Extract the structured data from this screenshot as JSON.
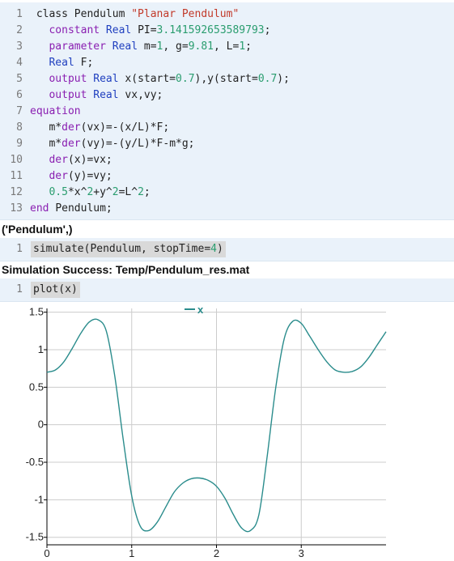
{
  "cell1": {
    "lines": [
      {
        "n": "1",
        "segs": [
          {
            "t": " class Pendulum ",
            "c": ""
          },
          {
            "t": "\"Planar Pendulum\"",
            "c": "str"
          }
        ]
      },
      {
        "n": "2",
        "segs": [
          {
            "t": "   constant ",
            "c": "kw"
          },
          {
            "t": "Real ",
            "c": "typ"
          },
          {
            "t": "PI=",
            "c": ""
          },
          {
            "t": "3.141592653589793",
            "c": "num"
          },
          {
            "t": ";",
            "c": ""
          }
        ]
      },
      {
        "n": "3",
        "segs": [
          {
            "t": "   parameter ",
            "c": "kw"
          },
          {
            "t": "Real ",
            "c": "typ"
          },
          {
            "t": "m=",
            "c": ""
          },
          {
            "t": "1",
            "c": "num"
          },
          {
            "t": ", g=",
            "c": ""
          },
          {
            "t": "9.81",
            "c": "num"
          },
          {
            "t": ", L=",
            "c": ""
          },
          {
            "t": "1",
            "c": "num"
          },
          {
            "t": ";",
            "c": ""
          }
        ]
      },
      {
        "n": "4",
        "segs": [
          {
            "t": "   Real ",
            "c": "typ"
          },
          {
            "t": "F;",
            "c": ""
          }
        ]
      },
      {
        "n": "5",
        "segs": [
          {
            "t": "   output ",
            "c": "kw"
          },
          {
            "t": "Real ",
            "c": "typ"
          },
          {
            "t": "x(start=",
            "c": ""
          },
          {
            "t": "0.7",
            "c": "num"
          },
          {
            "t": "),y(start=",
            "c": ""
          },
          {
            "t": "0.7",
            "c": "num"
          },
          {
            "t": ");",
            "c": ""
          }
        ]
      },
      {
        "n": "6",
        "segs": [
          {
            "t": "   output ",
            "c": "kw"
          },
          {
            "t": "Real ",
            "c": "typ"
          },
          {
            "t": "vx,vy;",
            "c": ""
          }
        ]
      },
      {
        "n": "7",
        "segs": [
          {
            "t": "equation",
            "c": "kw"
          }
        ]
      },
      {
        "n": "8",
        "segs": [
          {
            "t": "   m*",
            "c": ""
          },
          {
            "t": "der",
            "c": "kw"
          },
          {
            "t": "(vx)=-(x/L)*F;",
            "c": ""
          }
        ]
      },
      {
        "n": "9",
        "segs": [
          {
            "t": "   m*",
            "c": ""
          },
          {
            "t": "der",
            "c": "kw"
          },
          {
            "t": "(vy)=-(y/L)*F-m*g;",
            "c": ""
          }
        ]
      },
      {
        "n": "10",
        "segs": [
          {
            "t": "   ",
            "c": ""
          },
          {
            "t": "der",
            "c": "kw"
          },
          {
            "t": "(x)=vx;",
            "c": ""
          }
        ]
      },
      {
        "n": "11",
        "segs": [
          {
            "t": "   ",
            "c": ""
          },
          {
            "t": "der",
            "c": "kw"
          },
          {
            "t": "(y)=vy;",
            "c": ""
          }
        ]
      },
      {
        "n": "12",
        "segs": [
          {
            "t": "   ",
            "c": ""
          },
          {
            "t": "0.5",
            "c": "num"
          },
          {
            "t": "*x^",
            "c": ""
          },
          {
            "t": "2",
            "c": "num"
          },
          {
            "t": "+y^",
            "c": ""
          },
          {
            "t": "2",
            "c": "num"
          },
          {
            "t": "=L^",
            "c": ""
          },
          {
            "t": "2",
            "c": "num"
          },
          {
            "t": ";",
            "c": ""
          }
        ]
      },
      {
        "n": "13",
        "segs": [
          {
            "t": "end ",
            "c": "kw"
          },
          {
            "t": "Pendulum;",
            "c": ""
          }
        ]
      }
    ]
  },
  "output1": "('Pendulum',)",
  "cell2": {
    "n": "1",
    "segs": [
      {
        "t": "simulate(Pendulum, stopTime=",
        "c": ""
      },
      {
        "t": "4",
        "c": "num"
      },
      {
        "t": ")",
        "c": ""
      }
    ]
  },
  "output2": "Simulation Success: Temp/Pendulum_res.mat",
  "cell3": {
    "n": "1",
    "segs": [
      {
        "t": "plot(x)",
        "c": ""
      }
    ]
  },
  "colors": {
    "series": "#2a8c8c",
    "grid": "#cccccc",
    "axis": "#000000"
  },
  "chart_data": {
    "type": "line",
    "title": "",
    "xlabel": "",
    "ylabel": "",
    "xlim": [
      0,
      4
    ],
    "ylim": [
      -1.6,
      1.55
    ],
    "xticks": [
      0,
      1,
      2,
      3
    ],
    "yticks": [
      1.5,
      1,
      0.5,
      0,
      -0.5,
      -1,
      -1.5
    ],
    "ytick_labels": [
      "1.5",
      "1",
      "0.5",
      "0",
      "-0.5",
      "-1",
      "-1.5"
    ],
    "grid": true,
    "legend": "top-center",
    "series": [
      {
        "name": "x",
        "x": [
          0,
          0.1,
          0.2,
          0.3,
          0.4,
          0.5,
          0.6,
          0.7,
          0.8,
          0.9,
          1.0,
          1.1,
          1.2,
          1.3,
          1.4,
          1.5,
          1.6,
          1.7,
          1.8,
          1.9,
          2.0,
          2.1,
          2.2,
          2.3,
          2.4,
          2.5,
          2.6,
          2.7,
          2.8,
          2.9,
          3.0,
          3.1,
          3.2,
          3.3,
          3.4,
          3.5,
          3.6,
          3.7,
          3.8,
          3.9,
          4.0
        ],
        "y": [
          0.7,
          0.73,
          0.84,
          1.02,
          1.22,
          1.37,
          1.4,
          1.25,
          0.65,
          -0.2,
          -0.95,
          -1.35,
          -1.41,
          -1.3,
          -1.1,
          -0.9,
          -0.78,
          -0.72,
          -0.71,
          -0.74,
          -0.82,
          -0.98,
          -1.2,
          -1.38,
          -1.41,
          -1.2,
          -0.4,
          0.5,
          1.15,
          1.38,
          1.35,
          1.18,
          1.0,
          0.84,
          0.73,
          0.7,
          0.71,
          0.77,
          0.9,
          1.07,
          1.24
        ]
      }
    ]
  }
}
